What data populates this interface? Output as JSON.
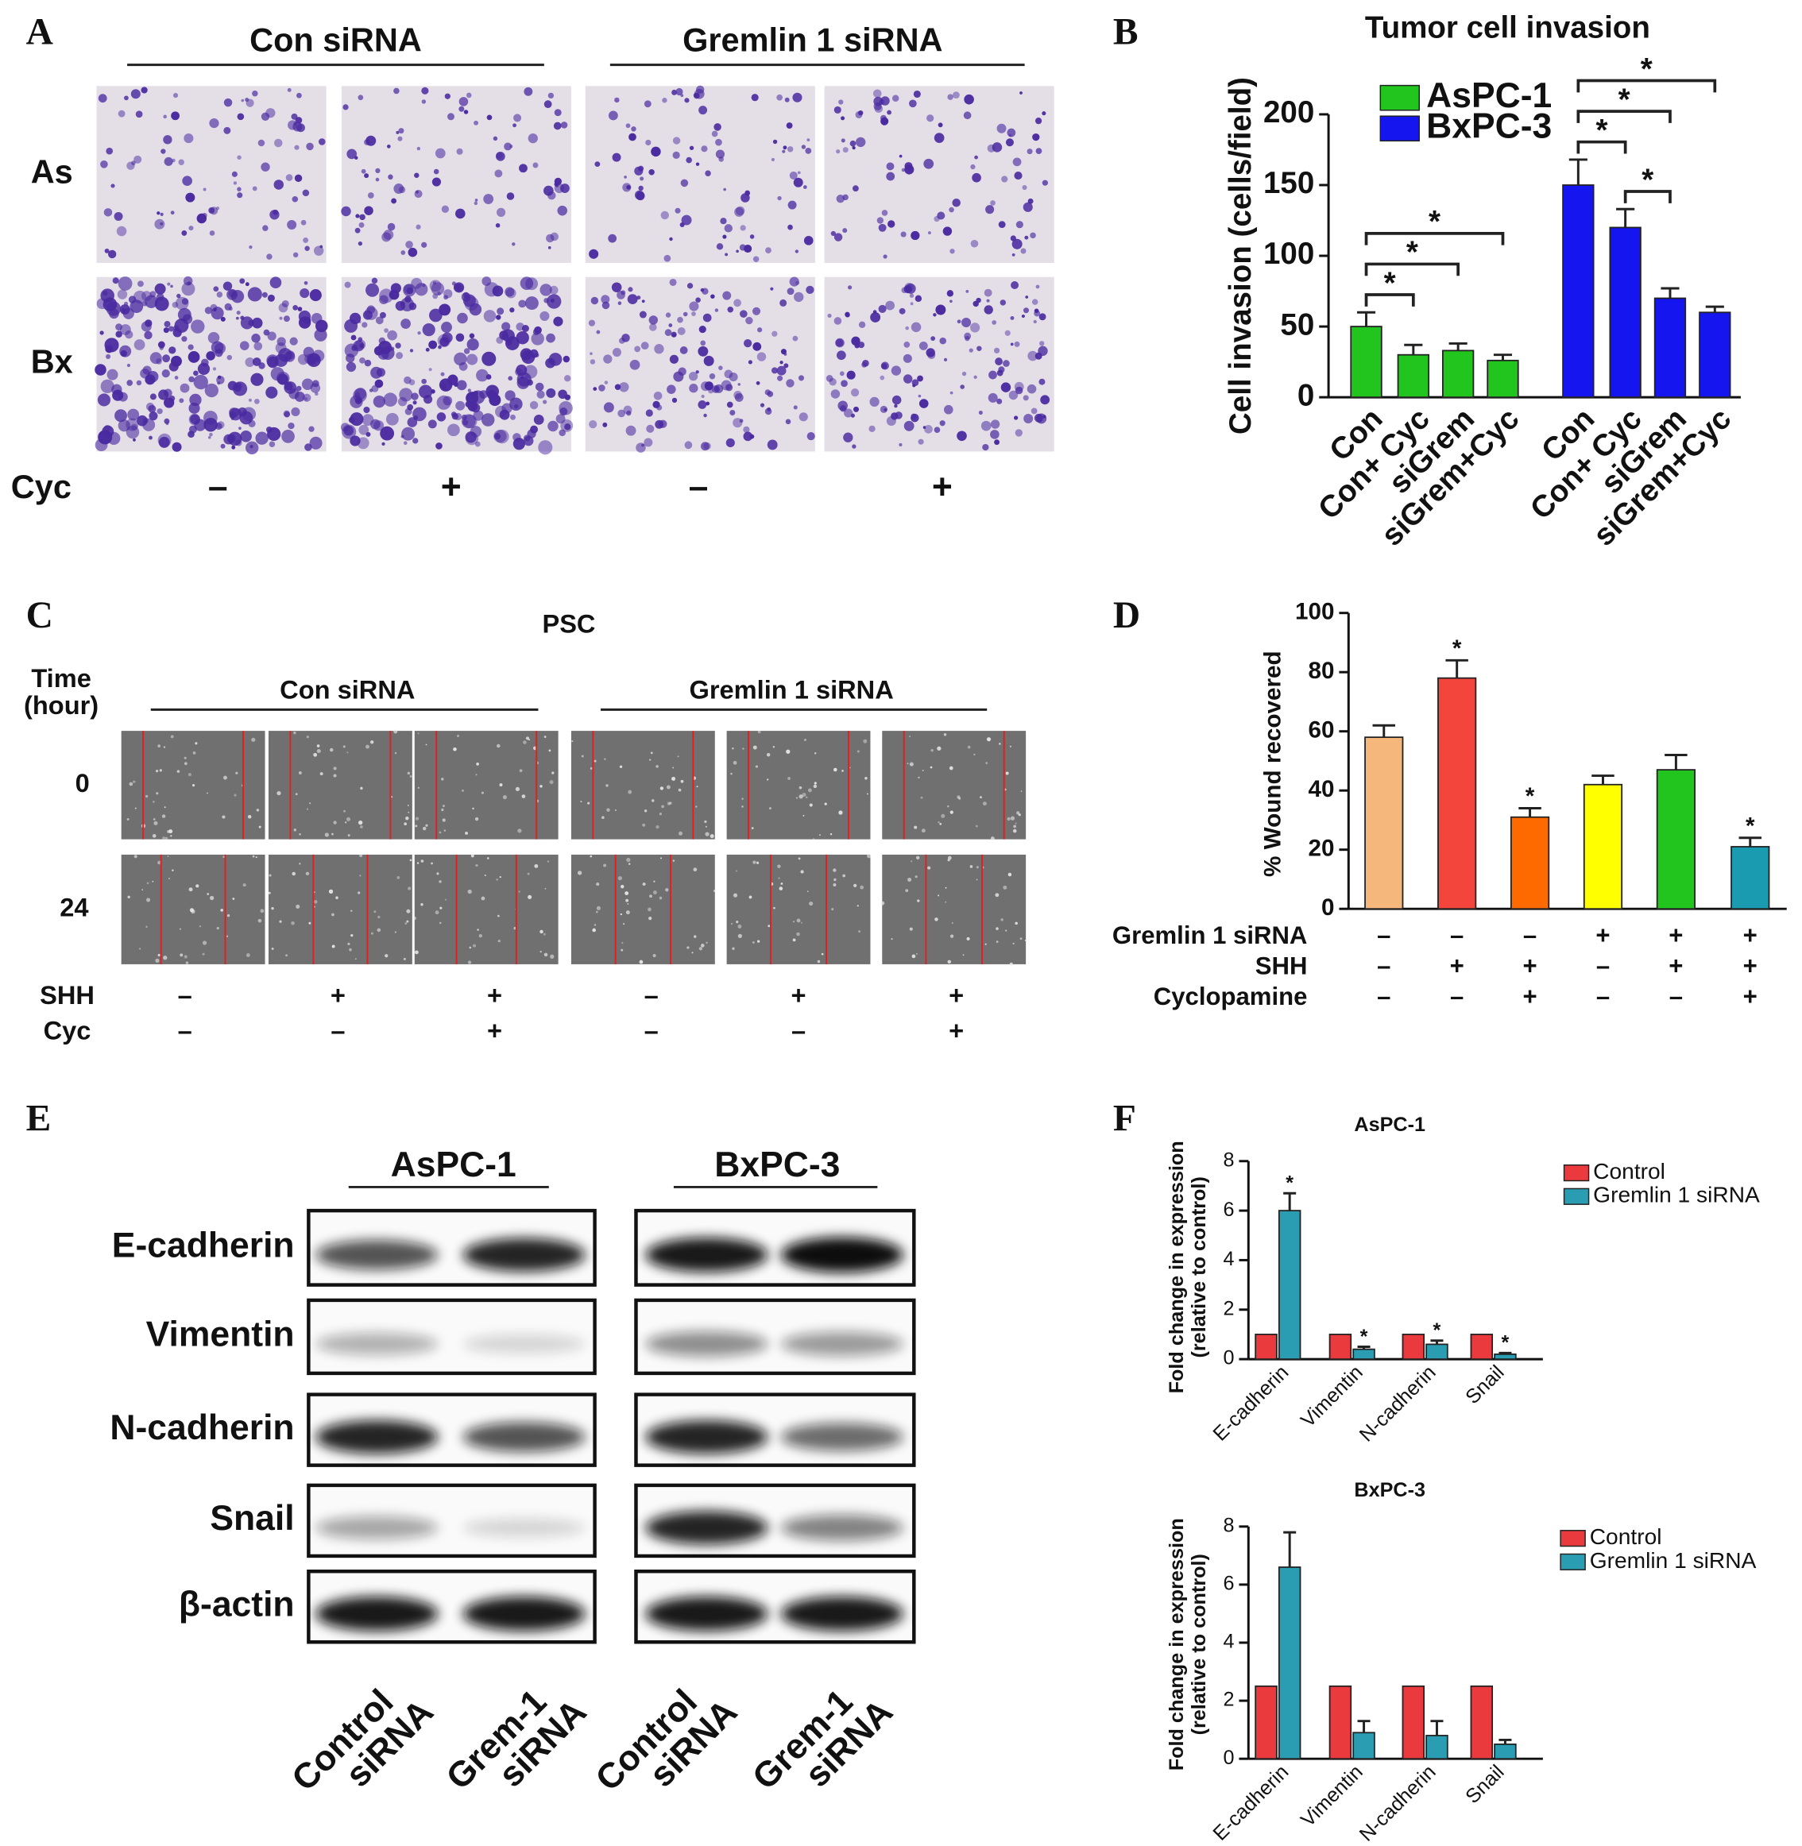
{
  "panel_labels": [
    "A",
    "B",
    "C",
    "D",
    "E",
    "F"
  ],
  "panel_a": {
    "groups": [
      "Con siRNA",
      "Gremlin 1 siRNA"
    ],
    "rows": [
      "As",
      "Bx"
    ],
    "treatment_label": "Cyc",
    "treatment": [
      "–",
      "+",
      "–",
      "+"
    ]
  },
  "panel_c": {
    "title": "PSC",
    "time_label": [
      "Time",
      "(hour)"
    ],
    "groups": [
      "Con siRNA",
      "Gremlin 1 siRNA"
    ],
    "rows": [
      "0",
      "24"
    ],
    "treatments": [
      {
        "label": "SHH",
        "values": [
          "–",
          "+",
          "+",
          "–",
          "+",
          "+"
        ]
      },
      {
        "label": "Cyc",
        "values": [
          "–",
          "–",
          "+",
          "–",
          "–",
          "+"
        ]
      }
    ]
  },
  "panel_e": {
    "groups": [
      "AsPC-1",
      "BxPC-3"
    ],
    "rows": [
      "E-cadherin",
      "Vimentin",
      "N-cadherin",
      "Snail",
      "β-actin"
    ],
    "lanes": [
      [
        "Control",
        "siRNA"
      ],
      [
        "Grem-1",
        "siRNA"
      ],
      [
        "Control",
        "siRNA"
      ],
      [
        "Grem-1",
        "siRNA"
      ]
    ]
  },
  "chart_data": [
    {
      "type": "bar",
      "title": "Tumor cell invasion",
      "y_label": "Cell invasion (cells/field)",
      "categories": [
        "Con",
        "Con+ Cyc",
        "siGrem",
        "siGrem+Cyc",
        "Con",
        "Con+ Cyc",
        "siGrem",
        "siGrem+Cyc"
      ],
      "series": [
        {
          "name": "AsPC-1",
          "color": "#22c51e",
          "values": [
            50,
            30,
            33,
            26,
            null,
            null,
            null,
            null
          ],
          "errors": [
            10,
            7,
            5,
            4,
            null,
            null,
            null,
            null
          ]
        },
        {
          "name": "BxPC-3",
          "color": "#1515f0",
          "values": [
            null,
            null,
            null,
            null,
            150,
            120,
            70,
            60
          ],
          "errors": [
            null,
            null,
            null,
            null,
            18,
            13,
            7,
            4
          ]
        }
      ],
      "comparisons": [
        {
          "from": 0,
          "to": 1,
          "label": "*"
        },
        {
          "from": 0,
          "to": 2,
          "label": "*"
        },
        {
          "from": 0,
          "to": 3,
          "label": "*"
        },
        {
          "from": 4,
          "to": 5,
          "label": "*"
        },
        {
          "from": 4,
          "to": 6,
          "label": "*"
        },
        {
          "from": 4,
          "to": 7,
          "label": "*"
        },
        {
          "from": 5,
          "to": 6,
          "label": "*"
        }
      ],
      "ylim": [
        0,
        200
      ],
      "yticks": [
        0,
        50,
        100,
        150,
        200
      ],
      "legend": "upper left"
    },
    {
      "type": "bar",
      "y_label": "% Wound recovered",
      "categories": [
        null,
        null,
        null,
        null,
        null,
        null
      ],
      "series": [
        {
          "colors": [
            "#f5b77c",
            "#f4453d",
            "#ff6a00",
            "#ffff00",
            "#22c51e",
            "#1b9bb0"
          ],
          "values": [
            58,
            78,
            31,
            42,
            47,
            21
          ],
          "errors": [
            4,
            6,
            3,
            3,
            5,
            3
          ],
          "markers": [
            null,
            "*",
            "*",
            null,
            null,
            "*"
          ]
        }
      ],
      "condition_rows": [
        {
          "label": "Gremlin 1 siRNA",
          "values": [
            "–",
            "–",
            "–",
            "+",
            "+",
            "+"
          ]
        },
        {
          "label": "SHH",
          "values": [
            "–",
            "+",
            "+",
            "–",
            "+",
            "+"
          ]
        },
        {
          "label": "Cyclopamine",
          "values": [
            "–",
            "–",
            "+",
            "–",
            "–",
            "+"
          ]
        }
      ],
      "ylim": [
        0,
        100
      ],
      "yticks": [
        0,
        20,
        40,
        60,
        80,
        100
      ]
    },
    {
      "type": "bar",
      "title": "AsPC-1",
      "y_label": [
        "Fold change in expression",
        "(relative to control)"
      ],
      "categories": [
        "E-cadherin",
        "Vimentin",
        "N-cadherin",
        "Snail"
      ],
      "series": [
        {
          "name": "Control",
          "color": "#ea3a3e",
          "values": [
            1,
            1,
            1,
            1
          ]
        },
        {
          "name": "Gremlin 1 siRNA",
          "color": "#2a9db2",
          "values": [
            6.0,
            0.4,
            0.6,
            0.2
          ],
          "errors": [
            0.7,
            0.1,
            0.15,
            0.05
          ],
          "markers": [
            "*",
            "*",
            "*",
            "*"
          ]
        }
      ],
      "ylim": [
        0,
        8
      ],
      "yticks": [
        0,
        2,
        4,
        6,
        8
      ],
      "legend": "upper right"
    },
    {
      "type": "bar",
      "title": "BxPC-3",
      "y_label": [
        "Fold change in expression",
        "(relative to control)"
      ],
      "categories": [
        "E-cadherin",
        "Vimentin",
        "N-cadherin",
        "Snail"
      ],
      "series": [
        {
          "name": "Control",
          "color": "#ea3a3e",
          "values": [
            2.5,
            2.5,
            2.5,
            2.5
          ]
        },
        {
          "name": "Gremlin 1 siRNA",
          "color": "#2a9db2",
          "values": [
            6.6,
            0.9,
            0.8,
            0.5
          ],
          "errors": [
            1.2,
            0.4,
            0.5,
            0.15
          ]
        }
      ],
      "ylim": [
        0,
        8
      ],
      "yticks": [
        0,
        2,
        4,
        6,
        8
      ],
      "legend": "upper right"
    }
  ]
}
